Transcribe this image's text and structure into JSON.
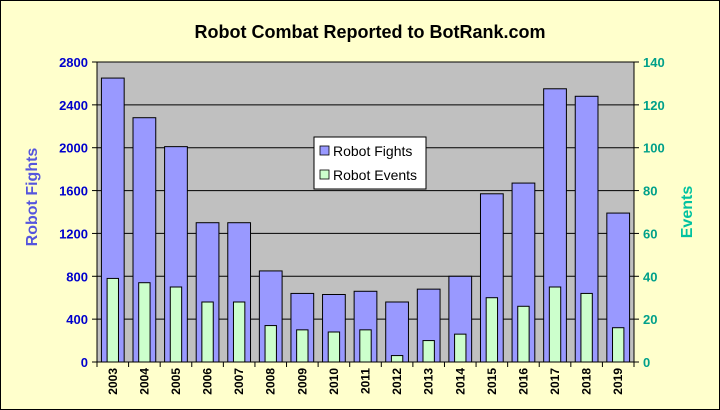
{
  "chart_data": {
    "type": "bar",
    "title": "Robot Combat Reported to BotRank.com",
    "ylabel_left": "Robot Fights",
    "ylabel_right": "Events",
    "ylim_left": [
      0,
      2800
    ],
    "ylim_right": [
      0,
      140
    ],
    "yticks_left": [
      "0",
      "400",
      "800",
      "1200",
      "1600",
      "2000",
      "2400",
      "2800"
    ],
    "yticks_right": [
      "0",
      "20",
      "40",
      "60",
      "80",
      "100",
      "120",
      "140"
    ],
    "grid": true,
    "legend_position": "center-top",
    "categories": [
      "2003",
      "2004",
      "2005",
      "2006",
      "2007",
      "2008",
      "2009",
      "2010",
      "2011",
      "2012",
      "2013",
      "2014",
      "2015",
      "2016",
      "2017",
      "2018",
      "2019"
    ],
    "series": [
      {
        "name": "Robot Fights",
        "axis": "left",
        "color": "#9999ff",
        "values": [
          2650,
          2280,
          2010,
          1300,
          1300,
          850,
          640,
          630,
          660,
          560,
          680,
          800,
          1570,
          1670,
          2550,
          2480,
          1390
        ]
      },
      {
        "name": "Robot Events",
        "axis": "right",
        "color": "#ccffcc",
        "values": [
          39,
          37,
          35,
          28,
          28,
          17,
          15,
          14,
          15,
          3,
          10,
          13,
          30,
          26,
          35,
          32,
          16
        ]
      }
    ]
  },
  "colors": {
    "plot_background": "#c0c0c0",
    "chart_background": "#ffffcc",
    "left_axis_text": "#0000cc",
    "right_axis_text": "#00a08a"
  }
}
